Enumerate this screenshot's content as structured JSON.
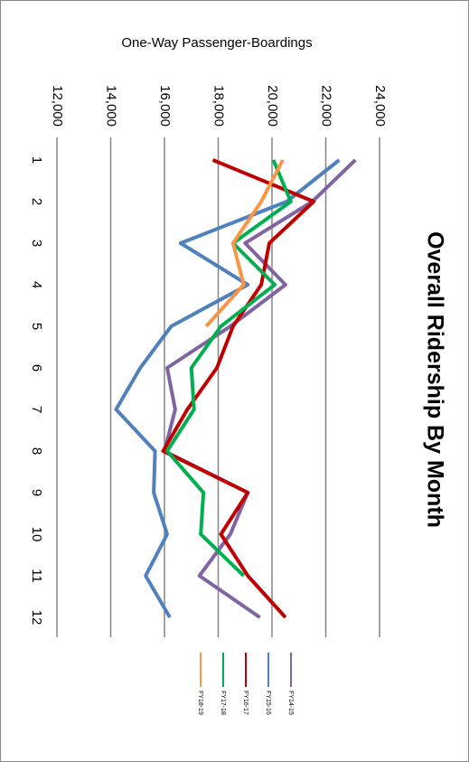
{
  "chart_data": {
    "type": "line",
    "title": "Overall Ridership By Month",
    "y_label": "One-Way Passenger-Boardings",
    "categories": [
      "1",
      "2",
      "3",
      "4",
      "5",
      "6",
      "7",
      "8",
      "9",
      "10",
      "11",
      "12"
    ],
    "series": [
      {
        "name": "FY14-15",
        "color": "#8064a2",
        "values": [
          23100,
          21500,
          19000,
          20500,
          18450,
          16100,
          16400,
          16000,
          19100,
          18450,
          17300,
          19550
        ]
      },
      {
        "name": "FY15-16",
        "color": "#4f81bd",
        "values": [
          22500,
          20550,
          16600,
          19100,
          16250,
          15100,
          14200,
          15650,
          15600,
          16100,
          15300,
          16200
        ]
      },
      {
        "name": "FY16-17",
        "color": "#c00000",
        "values": [
          17800,
          21550,
          19900,
          19600,
          18550,
          17950,
          16850,
          15950,
          19100,
          18100,
          19100,
          20500
        ]
      },
      {
        "name": "FY17-18",
        "color": "#00b050",
        "values": [
          20050,
          20700,
          18550,
          20100,
          18100,
          17000,
          17100,
          16100,
          17450,
          17350,
          18950,
          null
        ]
      },
      {
        "name": "FY18-19",
        "color": "#f79646",
        "values": [
          20400,
          19600,
          18550,
          18950,
          17550,
          null,
          null,
          null,
          null,
          null,
          null,
          null
        ]
      }
    ],
    "ylim": [
      12000,
      24000
    ],
    "yticks": [
      {
        "value": 12000,
        "label": "12,000"
      },
      {
        "value": 14000,
        "label": "14,000"
      },
      {
        "value": 16000,
        "label": "16,000"
      },
      {
        "value": 18000,
        "label": "18,000"
      },
      {
        "value": 20000,
        "label": "20,000"
      },
      {
        "value": 22000,
        "label": "22,000"
      },
      {
        "value": 24000,
        "label": "24,000"
      }
    ],
    "grid": true,
    "legend": "right"
  }
}
